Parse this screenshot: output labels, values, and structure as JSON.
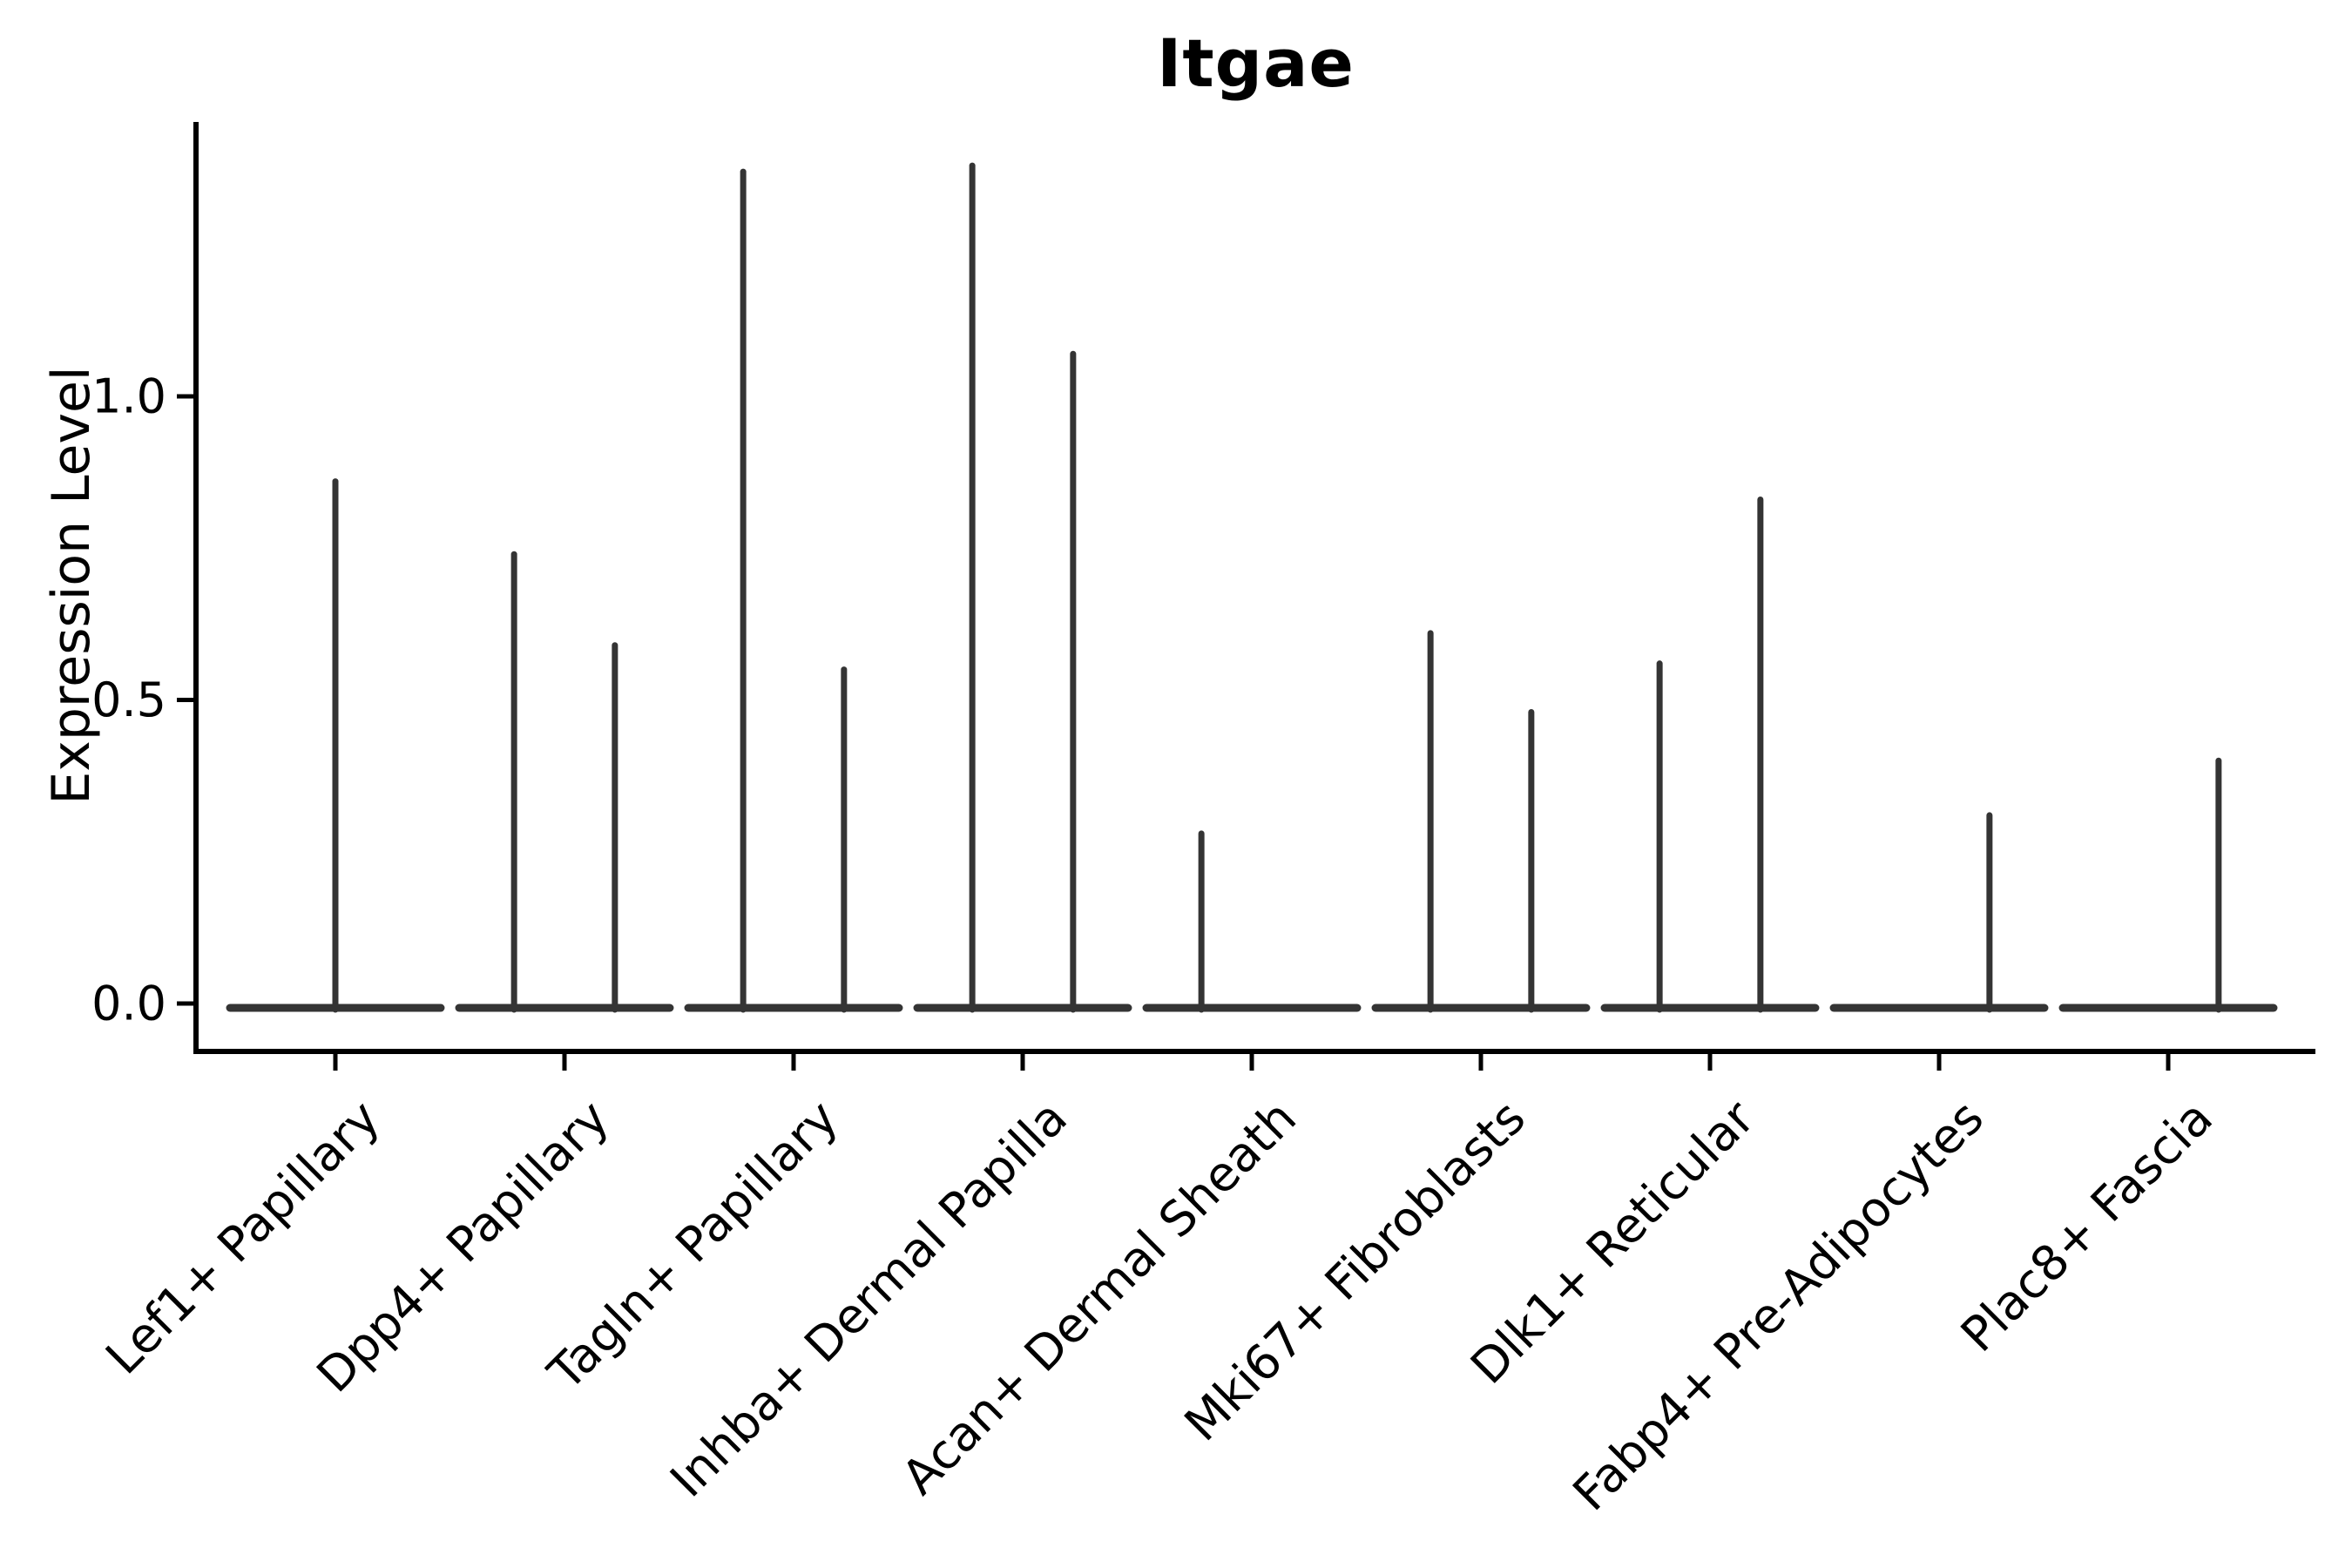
{
  "figure": {
    "title": "Itgae"
  },
  "chart_data": {
    "type": "violin",
    "title": "Itgae",
    "xlabel": "",
    "ylabel": "Expression Level",
    "ylim": [
      -0.08,
      1.45
    ],
    "grid": false,
    "legend": null,
    "yticks": [
      {
        "label": "0.0",
        "value": 0.0
      },
      {
        "label": "0.5",
        "value": 0.5
      },
      {
        "label": "1.0",
        "value": 1.0
      }
    ],
    "categories": [
      "Lef1+ Papillary",
      "Dpp4+ Papillary",
      "Tagln+ Papillary",
      "Inhba+ Dermal Papilla",
      "Acan+ Dermal Sheath",
      "Mki67+ Fibroblasts",
      "Dlk1+ Reticular",
      "Fabp4+ Pre-Adipocytes",
      "Plac8+ Fascia"
    ],
    "violins": [
      {
        "label": "Lef1+ Papillary",
        "spikes": [
          {
            "pos": 0.0,
            "value": 0.86
          }
        ]
      },
      {
        "label": "Dpp4+ Papillary",
        "spikes": [
          {
            "pos": -0.22,
            "value": 0.74
          },
          {
            "pos": 0.22,
            "value": 0.59
          }
        ]
      },
      {
        "label": "Tagln+ Papillary",
        "spikes": [
          {
            "pos": -0.22,
            "value": 1.37
          },
          {
            "pos": 0.22,
            "value": 0.55
          }
        ]
      },
      {
        "label": "Inhba+ Dermal Papilla",
        "spikes": [
          {
            "pos": -0.22,
            "value": 1.38
          },
          {
            "pos": 0.22,
            "value": 1.07
          }
        ]
      },
      {
        "label": "Acan+ Dermal Sheath",
        "spikes": [
          {
            "pos": -0.22,
            "value": 0.28
          }
        ]
      },
      {
        "label": "Mki67+ Fibroblasts",
        "spikes": [
          {
            "pos": -0.22,
            "value": 0.61
          },
          {
            "pos": 0.22,
            "value": 0.48
          }
        ]
      },
      {
        "label": "Dlk1+ Reticular",
        "spikes": [
          {
            "pos": -0.22,
            "value": 0.56
          },
          {
            "pos": 0.22,
            "value": 0.83
          }
        ]
      },
      {
        "label": "Fabp4+ Pre-Adipocytes",
        "spikes": [
          {
            "pos": 0.22,
            "value": 0.31
          }
        ]
      },
      {
        "label": "Plac8+ Fascia",
        "spikes": [
          {
            "pos": 0.22,
            "value": 0.4
          }
        ]
      }
    ],
    "violin_base_halfwidth": 0.46,
    "colors": {
      "violin": "#343434",
      "axis": "#000000",
      "text": "#000000"
    },
    "background": "#ffffff"
  }
}
